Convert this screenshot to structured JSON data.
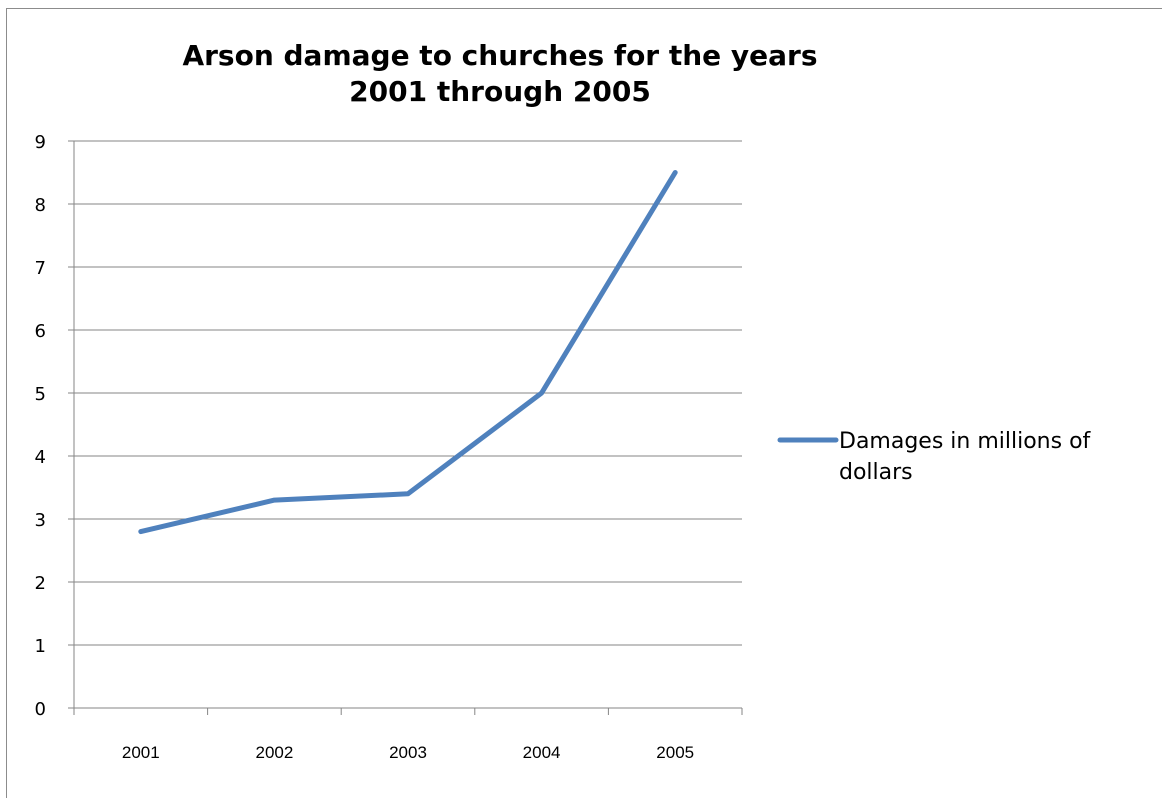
{
  "chart_data": {
    "type": "line",
    "title": "Arson damage to churches for the years 2001 through 2005",
    "categories": [
      "2001",
      "2002",
      "2003",
      "2004",
      "2005"
    ],
    "series": [
      {
        "name": "Damages in millions of dollars",
        "values": [
          2.8,
          3.3,
          3.4,
          5.0,
          8.5
        ],
        "color": "#4f81bd"
      }
    ],
    "ylim": [
      0,
      9
    ],
    "yticks": [
      0,
      1,
      2,
      3,
      4,
      5,
      6,
      7,
      8,
      9
    ],
    "grid": true,
    "legend_position": "right"
  }
}
